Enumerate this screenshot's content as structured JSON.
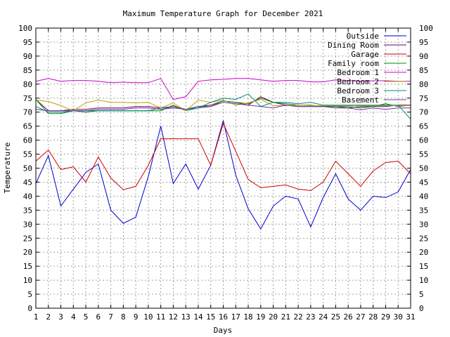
{
  "chart_data": {
    "type": "line",
    "title": "Maximum Temperature Graph for December 2021",
    "xlabel": "Days",
    "ylabel": "Temperature",
    "xlim": [
      1,
      31
    ],
    "ylim": [
      0,
      100
    ],
    "x_ticks": [
      1,
      2,
      3,
      4,
      5,
      6,
      7,
      8,
      9,
      10,
      11,
      12,
      13,
      14,
      15,
      16,
      17,
      18,
      19,
      20,
      21,
      22,
      23,
      24,
      25,
      26,
      27,
      28,
      29,
      30,
      31
    ],
    "y_ticks": [
      0,
      5,
      10,
      15,
      20,
      25,
      30,
      35,
      40,
      45,
      50,
      55,
      60,
      65,
      70,
      75,
      80,
      85,
      90,
      95,
      100
    ],
    "grid": true,
    "legend_position": "top-right",
    "x": [
      1,
      2,
      3,
      4,
      5,
      6,
      7,
      8,
      9,
      10,
      11,
      12,
      13,
      14,
      15,
      16,
      17,
      18,
      19,
      20,
      21,
      22,
      23,
      24,
      25,
      26,
      27,
      28,
      29,
      30,
      31
    ],
    "series": [
      {
        "name": "Outside",
        "color": "#0000cc",
        "values": [
          44.5,
          54.5,
          36.5,
          42.5,
          48.5,
          51.5,
          35,
          30.3,
          32.5,
          47,
          65,
          44.5,
          51.5,
          42.5,
          51,
          67,
          47.5,
          35.5,
          28.3,
          36.5,
          40,
          39,
          29,
          39.5,
          48,
          39,
          35,
          40,
          39.5,
          41.5,
          49.5
        ]
      },
      {
        "name": "Dining Room",
        "color": "#6a006a",
        "values": [
          74.5,
          70.5,
          70.5,
          71,
          71,
          71.5,
          71.5,
          71.5,
          72,
          72,
          71.5,
          72,
          71,
          72,
          72.5,
          74,
          73.5,
          72.5,
          75.5,
          73.5,
          72.5,
          72,
          72,
          72,
          72,
          71.5,
          72,
          72,
          72,
          72.5,
          72.5
        ]
      },
      {
        "name": "Garage",
        "color": "#cc0000",
        "values": [
          52.5,
          56.5,
          49.5,
          50.5,
          45,
          54,
          46.5,
          42.3,
          43.5,
          51,
          60.5,
          60.5,
          60.5,
          60.5,
          51,
          66,
          56,
          46,
          43,
          43.5,
          44,
          42.5,
          42,
          45,
          52.5,
          48,
          43.5,
          49,
          52,
          52.5,
          48
        ]
      },
      {
        "name": "Family room",
        "color": "#008800",
        "values": [
          74.5,
          69.5,
          69.5,
          70.5,
          70,
          70.5,
          70.5,
          70.5,
          70.5,
          70.5,
          70.5,
          72.5,
          70.5,
          71.5,
          72,
          74,
          73.5,
          73,
          75,
          73.5,
          73,
          72.5,
          72.5,
          72,
          72,
          72,
          71.5,
          72,
          73,
          72,
          72.5
        ]
      },
      {
        "name": "Bedroom 1",
        "color": "#cc00cc",
        "values": [
          81,
          82,
          81,
          81.3,
          81.3,
          81,
          80.5,
          80.7,
          80.5,
          80.5,
          82,
          74.5,
          75.5,
          81,
          81.5,
          81.7,
          82,
          82,
          81.5,
          81,
          81.3,
          81.3,
          80.8,
          80.8,
          81.5,
          81.3,
          81,
          81.2,
          81.2,
          81,
          81
        ]
      },
      {
        "name": "Bedroom 2",
        "color": "#c0a000",
        "values": [
          74.3,
          73.8,
          72.3,
          70.5,
          73.3,
          74.3,
          73.5,
          73.5,
          73.3,
          73.5,
          71.5,
          73.3,
          70.5,
          74.3,
          73.5,
          74.3,
          72.5,
          73.3,
          74.5,
          72.3,
          72.3,
          72.5,
          72.3,
          72.3,
          72.3,
          72.3,
          72.3,
          72.3,
          72.3,
          72.3,
          72.3
        ]
      },
      {
        "name": "Bedroom 3",
        "color": "#008888",
        "values": [
          72,
          70,
          70,
          70.5,
          70.5,
          70.5,
          70.5,
          70.5,
          70.5,
          70.5,
          71.5,
          71.5,
          71,
          71.5,
          73.5,
          75,
          74.5,
          76.5,
          72,
          73.5,
          73.5,
          73,
          73.5,
          72.5,
          72.5,
          72.5,
          72.5,
          72.5,
          72.5,
          72.5,
          67.5
        ]
      },
      {
        "name": "Basement",
        "color": "#7030a0",
        "values": [
          71,
          70.5,
          70.5,
          70.5,
          70.5,
          71,
          71,
          71,
          71.5,
          71.5,
          71,
          71.5,
          71,
          72,
          72,
          73.5,
          73,
          72.5,
          72,
          71.5,
          72.5,
          72,
          72,
          72,
          71.5,
          71.5,
          70.8,
          71.5,
          71,
          71.5,
          71.5
        ]
      }
    ]
  }
}
